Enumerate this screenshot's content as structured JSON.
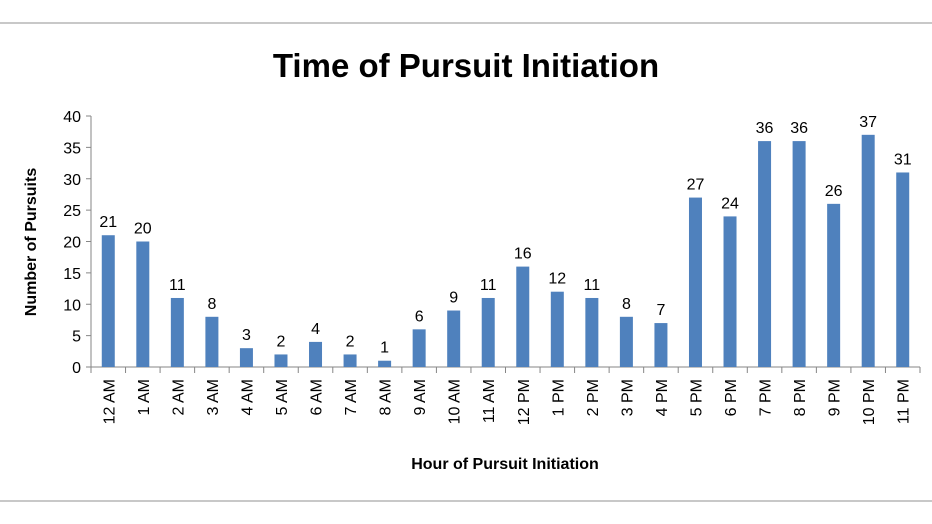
{
  "chart_data": {
    "type": "bar",
    "title": "Time of Pursuit Initiation",
    "xlabel": "Hour of Pursuit Initiation",
    "ylabel": "Number of Pursuits",
    "ylim": [
      0,
      40
    ],
    "yticks": [
      0,
      5,
      10,
      15,
      20,
      25,
      30,
      35,
      40
    ],
    "grid": false,
    "legend": "none",
    "bar_color": "#4f81bd",
    "categories": [
      "12 AM",
      "1 AM",
      "2 AM",
      "3 AM",
      "4 AM",
      "5 AM",
      "6 AM",
      "7 AM",
      "8 AM",
      "9 AM",
      "10 AM",
      "11 AM",
      "12 PM",
      "1 PM",
      "2 PM",
      "3 PM",
      "4 PM",
      "5 PM",
      "6 PM",
      "7 PM",
      "8 PM",
      "9 PM",
      "10 PM",
      "11 PM"
    ],
    "values": [
      21,
      20,
      11,
      8,
      3,
      2,
      4,
      2,
      1,
      6,
      9,
      11,
      16,
      12,
      11,
      8,
      7,
      27,
      24,
      36,
      36,
      26,
      37,
      31
    ]
  }
}
